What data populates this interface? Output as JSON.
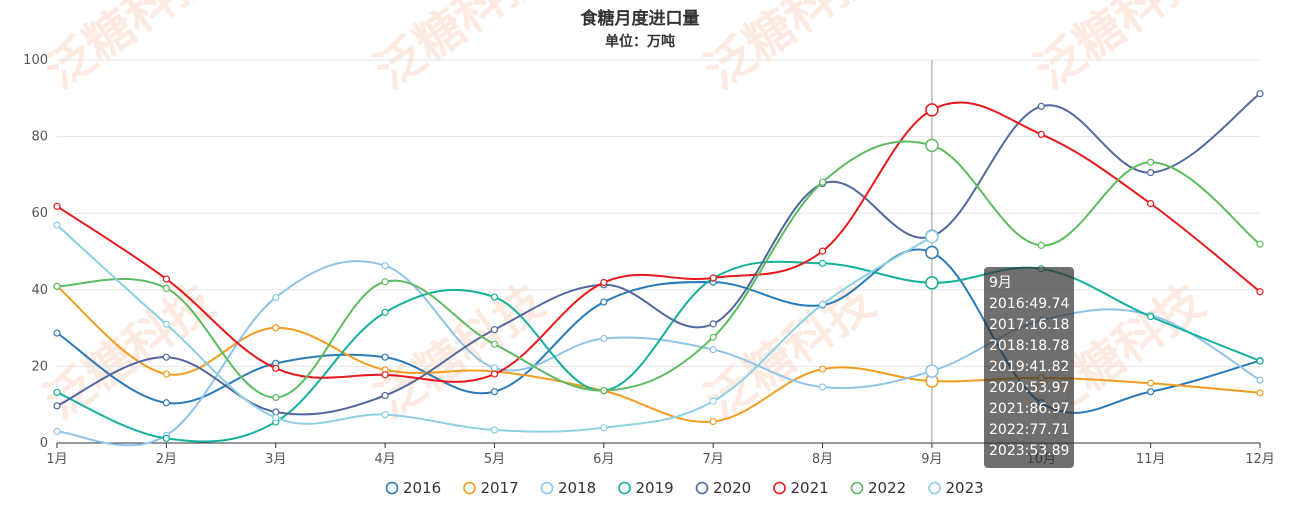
{
  "chart_data": {
    "type": "line",
    "title": "食糖月度进口量",
    "subtitle": "单位：万吨",
    "categories": [
      "1月",
      "2月",
      "3月",
      "4月",
      "5月",
      "6月",
      "7月",
      "8月",
      "9月",
      "10月",
      "11月",
      "12月"
    ],
    "ylim": [
      0,
      100
    ],
    "yticks": [
      0,
      20,
      40,
      60,
      80,
      100
    ],
    "grid": true,
    "legend_position": "bottom",
    "smooth": true,
    "series": [
      {
        "name": "2016",
        "color": "#2a7ab9",
        "values": [
          28.7,
          10.5,
          20.8,
          22.4,
          13.4,
          36.8,
          42.0,
          36.0,
          49.74,
          10.5,
          13.4,
          21.5
        ]
      },
      {
        "name": "2017",
        "color": "#f39c1f",
        "values": [
          40.9,
          18.0,
          30.1,
          19.1,
          18.7,
          13.6,
          5.6,
          19.3,
          16.18,
          17.0,
          15.6,
          13.1
        ]
      },
      {
        "name": "2018",
        "color": "#8fc4e8",
        "values": [
          3.0,
          2.0,
          38.0,
          46.3,
          19.6,
          27.3,
          24.4,
          14.6,
          18.78,
          32.0,
          33.4,
          16.4
        ]
      },
      {
        "name": "2019",
        "color": "#14b09a",
        "values": [
          13.2,
          1.2,
          5.5,
          34.1,
          38.1,
          13.7,
          43.0,
          46.9,
          41.82,
          45.5,
          33.0,
          21.4
        ]
      },
      {
        "name": "2020",
        "color": "#53679f",
        "values": [
          9.7,
          22.4,
          8.1,
          12.4,
          29.6,
          41.3,
          31.1,
          67.7,
          53.97,
          87.9,
          70.6,
          91.2
        ]
      },
      {
        "name": "2021",
        "color": "#e8191c",
        "values": [
          61.8,
          42.8,
          19.5,
          17.8,
          18.0,
          41.9,
          43.1,
          50.1,
          86.97,
          80.6,
          62.5,
          39.5
        ]
      },
      {
        "name": "2022",
        "color": "#5dbb62",
        "values": [
          40.9,
          40.4,
          11.9,
          42.1,
          25.8,
          13.7,
          27.6,
          68.1,
          77.71,
          51.6,
          73.3,
          51.9
        ]
      },
      {
        "name": "2023",
        "color": "#8cd0e3",
        "values": [
          56.9,
          31.0,
          6.6,
          7.4,
          3.4,
          4.0,
          10.9,
          36.2,
          53.89,
          null,
          null,
          null
        ]
      }
    ]
  },
  "tooltip": {
    "header": "9月",
    "lines": [
      "2016:49.74",
      "2017:16.18",
      "2018:18.78",
      "2019:41.82",
      "2020:53.97",
      "2021:86.97",
      "2022:77.71",
      "2023:53.89"
    ]
  },
  "watermark": {
    "text": "泛糖科技"
  }
}
